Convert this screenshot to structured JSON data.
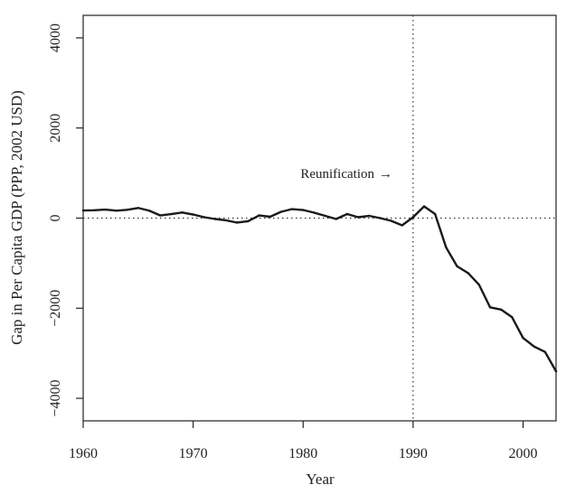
{
  "chart_data": {
    "type": "line",
    "title": "",
    "xlabel": "Year",
    "ylabel": "Gap in Per Capita GDP (PPP, 2002 USD)",
    "xlim": [
      1960,
      2003
    ],
    "ylim": [
      -4500,
      4500
    ],
    "x_ticks": [
      1960,
      1970,
      1980,
      1990,
      2000
    ],
    "y_ticks": [
      -4000,
      -2000,
      0,
      2000,
      4000
    ],
    "x_tick_labels": [
      "1960",
      "1970",
      "1980",
      "1990",
      "2000"
    ],
    "y_tick_labels": [
      "−4000",
      "−2000",
      "0",
      "2000",
      "4000"
    ],
    "grid": false,
    "reference_lines": {
      "vertical_x": 1990,
      "horizontal_y": 0,
      "style": "dotted"
    },
    "annotation": {
      "text": "Reunification",
      "arrow": "→",
      "points_to_x": 1990
    },
    "series": [
      {
        "color": "#1a1a1a",
        "x": [
          1960,
          1961,
          1962,
          1963,
          1964,
          1965,
          1966,
          1967,
          1968,
          1969,
          1970,
          1971,
          1972,
          1973,
          1974,
          1975,
          1976,
          1977,
          1978,
          1979,
          1980,
          1981,
          1982,
          1983,
          1984,
          1985,
          1986,
          1987,
          1988,
          1989,
          1990,
          1991,
          1992,
          1993,
          1994,
          1995,
          1996,
          1997,
          1998,
          1999,
          2000,
          2001,
          2002,
          2003
        ],
        "y": [
          170,
          175,
          190,
          165,
          185,
          225,
          165,
          60,
          90,
          125,
          80,
          20,
          -20,
          -50,
          -100,
          -70,
          60,
          30,
          140,
          200,
          180,
          120,
          50,
          -20,
          90,
          20,
          50,
          0,
          -60,
          -160,
          20,
          260,
          90,
          -650,
          -1070,
          -1220,
          -1480,
          -1980,
          -2030,
          -2200,
          -2660,
          -2850,
          -2970,
          -3400
        ]
      }
    ]
  }
}
